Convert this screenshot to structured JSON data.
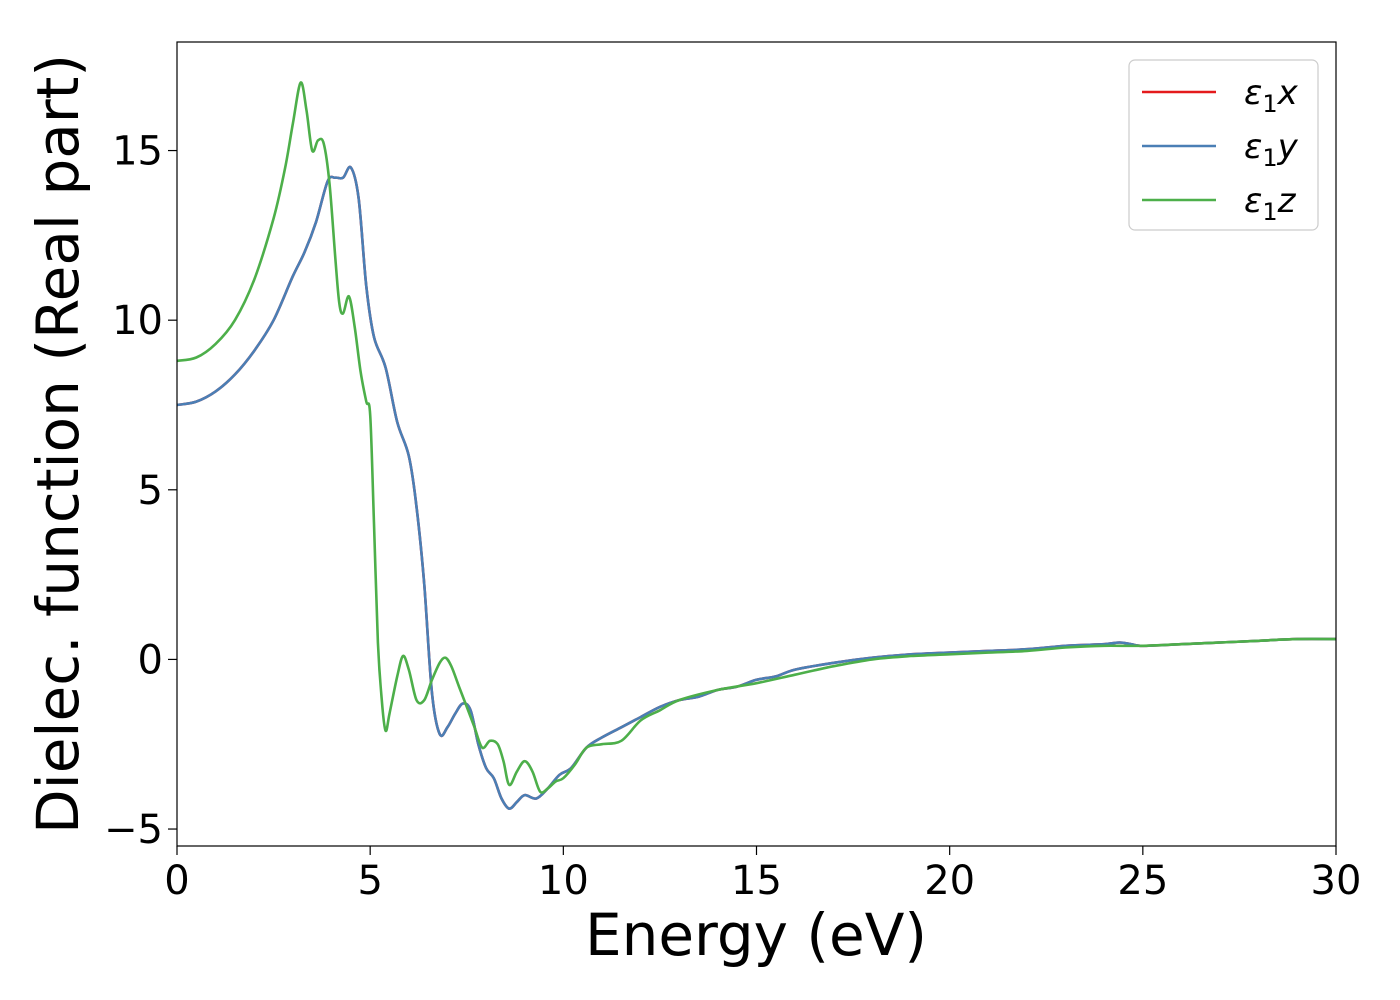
{
  "chart_data": {
    "type": "line",
    "xlabel": "Energy (eV)",
    "ylabel": "Dielec. function (Real part)",
    "xlim": [
      0,
      30
    ],
    "ylim": [
      -5.5,
      18.2
    ],
    "xticks": [
      0,
      5,
      10,
      15,
      20,
      25,
      30
    ],
    "yticks": [
      -5,
      0,
      5,
      10,
      15
    ],
    "xtick_labels": [
      "0",
      "5",
      "10",
      "15",
      "20",
      "25",
      "30"
    ],
    "ytick_labels": [
      "−5",
      "0",
      "5",
      "10",
      "15"
    ],
    "grid": false,
    "legend_position": "top-right",
    "series": [
      {
        "name": "ε1x",
        "symbol": "ε",
        "subscript": "1",
        "component": "x",
        "color": "#e41a1c",
        "x": [
          0,
          0.5,
          1.0,
          1.5,
          2.0,
          2.5,
          3.0,
          3.3,
          3.6,
          3.9,
          4.1,
          4.3,
          4.5,
          4.7,
          4.9,
          5.1,
          5.4,
          5.7,
          6.0,
          6.2,
          6.4,
          6.6,
          6.8,
          7.0,
          7.2,
          7.4,
          7.6,
          7.8,
          8.0,
          8.2,
          8.4,
          8.6,
          8.8,
          9.0,
          9.3,
          9.6,
          9.9,
          10.2,
          10.6,
          11.0,
          11.5,
          12.0,
          12.5,
          13.0,
          13.5,
          14.0,
          14.5,
          15.0,
          15.5,
          16.0,
          17.0,
          18.0,
          19.0,
          20.0,
          21.0,
          22.0,
          23.0,
          24.0,
          24.4,
          24.7,
          25.0,
          26.0,
          27.0,
          28.0,
          29.0,
          30.0
        ],
        "y": [
          7.5,
          7.6,
          7.9,
          8.4,
          9.1,
          10.0,
          11.3,
          12.0,
          12.9,
          14.1,
          14.2,
          14.2,
          14.5,
          13.6,
          11.0,
          9.5,
          8.6,
          7.0,
          6.0,
          4.5,
          2.2,
          -1.0,
          -2.2,
          -2.0,
          -1.6,
          -1.3,
          -1.5,
          -2.5,
          -3.2,
          -3.5,
          -4.1,
          -4.4,
          -4.2,
          -4.0,
          -4.1,
          -3.8,
          -3.4,
          -3.2,
          -2.6,
          -2.3,
          -2.0,
          -1.7,
          -1.4,
          -1.2,
          -1.1,
          -0.9,
          -0.8,
          -0.6,
          -0.5,
          -0.3,
          -0.1,
          0.05,
          0.15,
          0.2,
          0.25,
          0.3,
          0.4,
          0.45,
          0.5,
          0.45,
          0.4,
          0.45,
          0.5,
          0.55,
          0.6,
          0.6
        ]
      },
      {
        "name": "ε1y",
        "symbol": "ε",
        "subscript": "1",
        "component": "y",
        "color": "#4a7fb5",
        "x": [
          0,
          0.5,
          1.0,
          1.5,
          2.0,
          2.5,
          3.0,
          3.3,
          3.6,
          3.9,
          4.1,
          4.3,
          4.5,
          4.7,
          4.9,
          5.1,
          5.4,
          5.7,
          6.0,
          6.2,
          6.4,
          6.6,
          6.8,
          7.0,
          7.2,
          7.4,
          7.6,
          7.8,
          8.0,
          8.2,
          8.4,
          8.6,
          8.8,
          9.0,
          9.3,
          9.6,
          9.9,
          10.2,
          10.6,
          11.0,
          11.5,
          12.0,
          12.5,
          13.0,
          13.5,
          14.0,
          14.5,
          15.0,
          15.5,
          16.0,
          17.0,
          18.0,
          19.0,
          20.0,
          21.0,
          22.0,
          23.0,
          24.0,
          24.4,
          24.7,
          25.0,
          26.0,
          27.0,
          28.0,
          29.0,
          30.0
        ],
        "y": [
          7.5,
          7.6,
          7.9,
          8.4,
          9.1,
          10.0,
          11.3,
          12.0,
          12.9,
          14.1,
          14.2,
          14.2,
          14.5,
          13.6,
          11.0,
          9.5,
          8.6,
          7.0,
          6.0,
          4.5,
          2.2,
          -1.0,
          -2.2,
          -2.0,
          -1.6,
          -1.3,
          -1.5,
          -2.5,
          -3.2,
          -3.5,
          -4.1,
          -4.4,
          -4.2,
          -4.0,
          -4.1,
          -3.8,
          -3.4,
          -3.2,
          -2.6,
          -2.3,
          -2.0,
          -1.7,
          -1.4,
          -1.2,
          -1.1,
          -0.9,
          -0.8,
          -0.6,
          -0.5,
          -0.3,
          -0.1,
          0.05,
          0.15,
          0.2,
          0.25,
          0.3,
          0.4,
          0.45,
          0.5,
          0.45,
          0.4,
          0.45,
          0.5,
          0.55,
          0.6,
          0.6
        ]
      },
      {
        "name": "ε1z",
        "symbol": "ε",
        "subscript": "1",
        "component": "z",
        "color": "#4daf4a",
        "x": [
          0,
          0.5,
          1.0,
          1.5,
          2.0,
          2.5,
          2.8,
          3.0,
          3.2,
          3.35,
          3.5,
          3.65,
          3.8,
          3.95,
          4.1,
          4.2,
          4.3,
          4.45,
          4.6,
          4.75,
          4.9,
          5.0,
          5.1,
          5.2,
          5.3,
          5.4,
          5.5,
          5.7,
          5.85,
          6.0,
          6.2,
          6.4,
          6.6,
          6.8,
          6.95,
          7.1,
          7.3,
          7.5,
          7.7,
          7.9,
          8.1,
          8.3,
          8.45,
          8.6,
          8.8,
          9.0,
          9.2,
          9.4,
          9.6,
          9.8,
          10.0,
          10.3,
          10.6,
          11.0,
          11.5,
          12.0,
          12.5,
          13.0,
          14.0,
          15.0,
          16.0,
          17.0,
          18.0,
          19.0,
          20.0,
          21.0,
          22.0,
          23.0,
          24.0,
          25.0,
          26.0,
          27.0,
          28.0,
          29.0,
          30.0
        ],
        "y": [
          8.8,
          8.9,
          9.3,
          10.0,
          11.2,
          13.0,
          14.5,
          15.8,
          17.0,
          16.2,
          15.0,
          15.3,
          15.2,
          14.0,
          11.8,
          10.5,
          10.2,
          10.7,
          9.8,
          8.5,
          7.6,
          7.2,
          4.0,
          0.5,
          -1.2,
          -2.1,
          -1.6,
          -0.5,
          0.1,
          -0.3,
          -1.2,
          -1.2,
          -0.6,
          -0.1,
          0.05,
          -0.2,
          -0.8,
          -1.4,
          -2.0,
          -2.6,
          -2.4,
          -2.5,
          -3.0,
          -3.7,
          -3.3,
          -3.0,
          -3.3,
          -3.9,
          -3.8,
          -3.6,
          -3.5,
          -3.1,
          -2.6,
          -2.5,
          -2.4,
          -1.8,
          -1.5,
          -1.2,
          -0.9,
          -0.7,
          -0.45,
          -0.2,
          0.0,
          0.1,
          0.15,
          0.2,
          0.25,
          0.35,
          0.4,
          0.4,
          0.45,
          0.5,
          0.55,
          0.6,
          0.6
        ]
      }
    ]
  }
}
